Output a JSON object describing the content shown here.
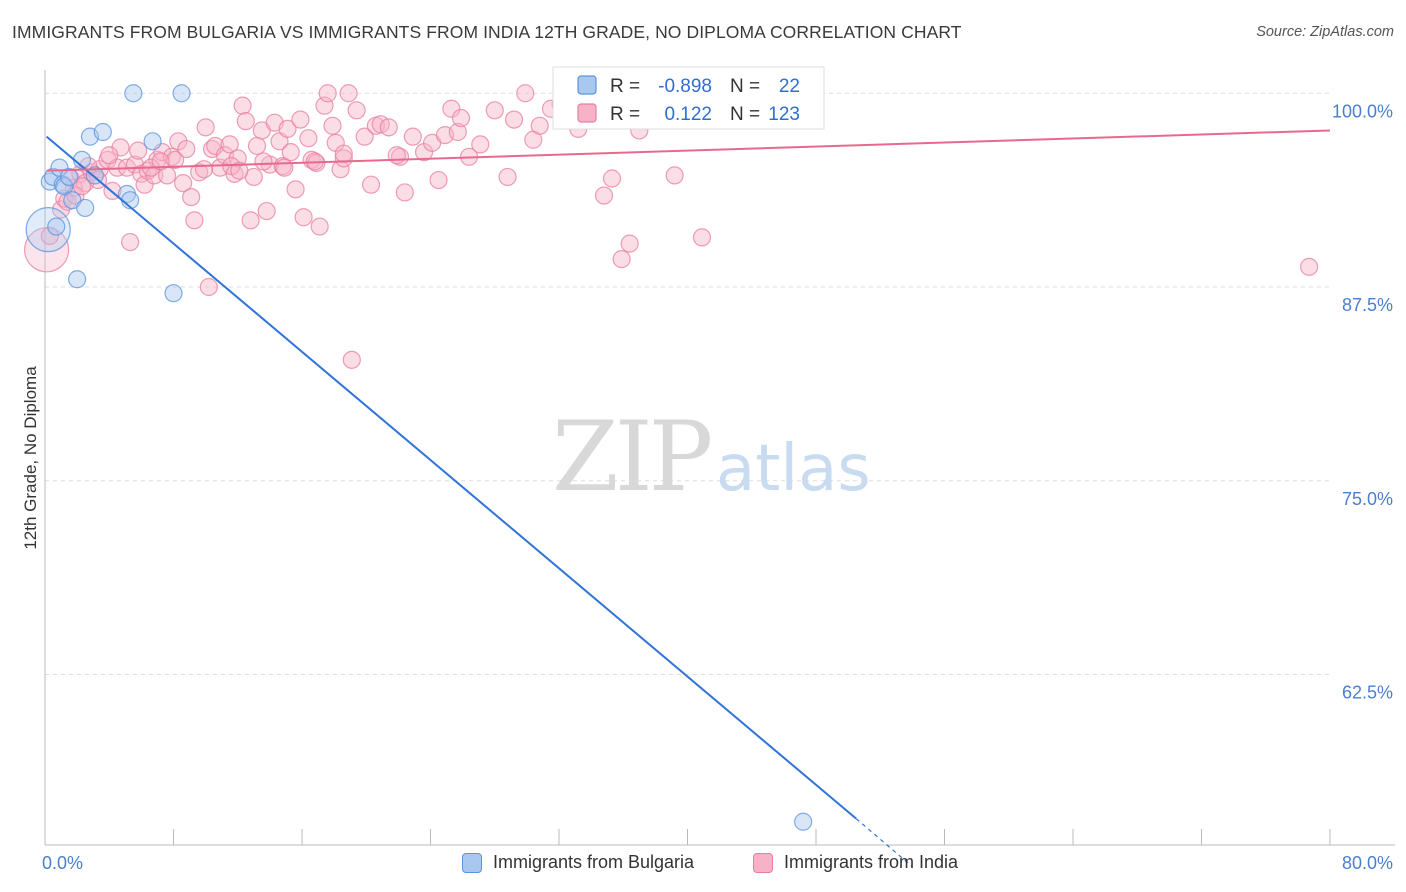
{
  "title": "IMMIGRANTS FROM BULGARIA VS IMMIGRANTS FROM INDIA 12TH GRADE, NO DIPLOMA CORRELATION CHART",
  "source": "Source: ZipAtlas.com",
  "watermark": {
    "zip": "ZIP",
    "atlas": "atlas"
  },
  "colors": {
    "bulgaria_fill": "#a9c8f0",
    "bulgaria_stroke": "#5a93de",
    "bulgaria_line": "#2f74d6",
    "india_fill": "#f6b3c8",
    "india_stroke": "#e97da0",
    "india_line": "#e8698f",
    "tick_label": "#4a7fd0",
    "grid": "#dddddd"
  },
  "legend": {
    "r_label": "R =",
    "n_label": "N =",
    "rows": [
      {
        "series": "Immigrants from Bulgaria",
        "r": "-0.898",
        "n": "22"
      },
      {
        "series": "Immigrants from India",
        "r": "0.122",
        "n": "123"
      }
    ]
  },
  "chart_data": {
    "type": "scatter",
    "title": "IMMIGRANTS FROM BULGARIA VS IMMIGRANTS FROM INDIA 12TH GRADE, NO DIPLOMA CORRELATION CHART",
    "xlabel": "",
    "ylabel": "12th Grade, No Diploma",
    "xlim": [
      0,
      80
    ],
    "ylim": [
      51.5,
      101.5
    ],
    "x_tick_labels": [
      "0.0%",
      "80.0%"
    ],
    "y_ticks": [
      100,
      87.5,
      75,
      62.5
    ],
    "y_tick_labels": [
      "100.0%",
      "87.5%",
      "75.0%",
      "62.5%"
    ],
    "grid": true,
    "series": [
      {
        "name": "Immigrants from Bulgaria",
        "trendline": {
          "x": [
            0.1,
            50.5
          ],
          "y": [
            97.2,
            53.2
          ],
          "dashed_to": [
            54.0,
            50.1
          ]
        },
        "points": [
          {
            "x": 0.2,
            "y": 91.2,
            "big": true
          },
          {
            "x": 0.3,
            "y": 94.3
          },
          {
            "x": 0.5,
            "y": 94.6
          },
          {
            "x": 0.9,
            "y": 95.2
          },
          {
            "x": 1.1,
            "y": 94.1
          },
          {
            "x": 1.2,
            "y": 94.0
          },
          {
            "x": 1.5,
            "y": 94.6
          },
          {
            "x": 1.7,
            "y": 93.1
          },
          {
            "x": 2.0,
            "y": 88.0
          },
          {
            "x": 2.3,
            "y": 95.7
          },
          {
            "x": 2.5,
            "y": 92.6
          },
          {
            "x": 2.8,
            "y": 97.2
          },
          {
            "x": 3.1,
            "y": 94.7
          },
          {
            "x": 3.6,
            "y": 97.5
          },
          {
            "x": 5.1,
            "y": 93.5
          },
          {
            "x": 5.3,
            "y": 93.1
          },
          {
            "x": 5.5,
            "y": 100.0
          },
          {
            "x": 6.7,
            "y": 96.9
          },
          {
            "x": 8.0,
            "y": 87.1
          },
          {
            "x": 8.5,
            "y": 100.0
          },
          {
            "x": 47.2,
            "y": 53.0
          },
          {
            "x": 0.7,
            "y": 91.4
          }
        ]
      },
      {
        "name": "Immigrants from India",
        "trendline": {
          "x": [
            0.1,
            80.0
          ],
          "y": [
            95.0,
            97.6
          ]
        },
        "points": [
          {
            "x": 0.1,
            "y": 89.9,
            "big": true
          },
          {
            "x": 0.3,
            "y": 90.8
          },
          {
            "x": 1.0,
            "y": 92.5
          },
          {
            "x": 1.2,
            "y": 93.2
          },
          {
            "x": 1.4,
            "y": 93.0
          },
          {
            "x": 1.6,
            "y": 94.5
          },
          {
            "x": 1.8,
            "y": 93.9
          },
          {
            "x": 2.2,
            "y": 94.8
          },
          {
            "x": 2.5,
            "y": 94.2
          },
          {
            "x": 2.9,
            "y": 94.9
          },
          {
            "x": 3.4,
            "y": 95.1
          },
          {
            "x": 3.9,
            "y": 95.7
          },
          {
            "x": 4.2,
            "y": 93.7
          },
          {
            "x": 4.5,
            "y": 95.2
          },
          {
            "x": 4.7,
            "y": 96.5
          },
          {
            "x": 5.1,
            "y": 95.2
          },
          {
            "x": 5.3,
            "y": 90.4
          },
          {
            "x": 5.6,
            "y": 95.4
          },
          {
            "x": 5.8,
            "y": 96.3
          },
          {
            "x": 6.0,
            "y": 94.8
          },
          {
            "x": 6.2,
            "y": 94.1
          },
          {
            "x": 6.4,
            "y": 95.0
          },
          {
            "x": 6.8,
            "y": 94.7
          },
          {
            "x": 7.0,
            "y": 95.7
          },
          {
            "x": 7.3,
            "y": 96.2
          },
          {
            "x": 7.6,
            "y": 94.7
          },
          {
            "x": 7.9,
            "y": 95.9
          },
          {
            "x": 8.3,
            "y": 96.9
          },
          {
            "x": 8.6,
            "y": 94.2
          },
          {
            "x": 8.8,
            "y": 96.4
          },
          {
            "x": 9.1,
            "y": 93.3
          },
          {
            "x": 9.3,
            "y": 91.8
          },
          {
            "x": 9.6,
            "y": 94.9
          },
          {
            "x": 10.0,
            "y": 97.8
          },
          {
            "x": 10.2,
            "y": 87.5
          },
          {
            "x": 10.4,
            "y": 96.4
          },
          {
            "x": 10.6,
            "y": 96.6
          },
          {
            "x": 10.9,
            "y": 95.2
          },
          {
            "x": 11.2,
            "y": 96.0
          },
          {
            "x": 11.5,
            "y": 96.7
          },
          {
            "x": 11.8,
            "y": 94.8
          },
          {
            "x": 12.0,
            "y": 95.8
          },
          {
            "x": 12.3,
            "y": 99.2
          },
          {
            "x": 12.5,
            "y": 98.2
          },
          {
            "x": 12.8,
            "y": 91.8
          },
          {
            "x": 13.0,
            "y": 94.6
          },
          {
            "x": 13.2,
            "y": 96.6
          },
          {
            "x": 13.5,
            "y": 97.6
          },
          {
            "x": 13.8,
            "y": 92.4
          },
          {
            "x": 14.0,
            "y": 95.4
          },
          {
            "x": 14.3,
            "y": 98.1
          },
          {
            "x": 14.6,
            "y": 96.9
          },
          {
            "x": 14.8,
            "y": 95.3
          },
          {
            "x": 15.1,
            "y": 97.7
          },
          {
            "x": 15.3,
            "y": 96.2
          },
          {
            "x": 15.6,
            "y": 93.8
          },
          {
            "x": 15.9,
            "y": 98.3
          },
          {
            "x": 16.1,
            "y": 92.0
          },
          {
            "x": 16.4,
            "y": 97.1
          },
          {
            "x": 16.6,
            "y": 95.7
          },
          {
            "x": 16.9,
            "y": 95.5
          },
          {
            "x": 17.1,
            "y": 91.4
          },
          {
            "x": 17.4,
            "y": 99.2
          },
          {
            "x": 17.6,
            "y": 100.0
          },
          {
            "x": 17.9,
            "y": 97.9
          },
          {
            "x": 18.1,
            "y": 96.8
          },
          {
            "x": 18.4,
            "y": 95.1
          },
          {
            "x": 18.6,
            "y": 95.8
          },
          {
            "x": 18.9,
            "y": 100.0
          },
          {
            "x": 19.1,
            "y": 82.8
          },
          {
            "x": 19.4,
            "y": 98.9
          },
          {
            "x": 19.9,
            "y": 97.2
          },
          {
            "x": 20.3,
            "y": 94.1
          },
          {
            "x": 20.6,
            "y": 97.9
          },
          {
            "x": 20.9,
            "y": 98.0
          },
          {
            "x": 21.4,
            "y": 97.8
          },
          {
            "x": 22.1,
            "y": 95.9
          },
          {
            "x": 22.4,
            "y": 93.6
          },
          {
            "x": 22.9,
            "y": 97.2
          },
          {
            "x": 23.6,
            "y": 96.2
          },
          {
            "x": 24.1,
            "y": 96.8
          },
          {
            "x": 24.5,
            "y": 94.4
          },
          {
            "x": 24.9,
            "y": 97.3
          },
          {
            "x": 25.3,
            "y": 99.0
          },
          {
            "x": 25.7,
            "y": 97.5
          },
          {
            "x": 25.9,
            "y": 98.4
          },
          {
            "x": 27.1,
            "y": 96.7
          },
          {
            "x": 28.0,
            "y": 98.9
          },
          {
            "x": 28.8,
            "y": 94.6
          },
          {
            "x": 29.2,
            "y": 98.3
          },
          {
            "x": 29.9,
            "y": 100.0
          },
          {
            "x": 30.4,
            "y": 97.0
          },
          {
            "x": 30.8,
            "y": 97.9
          },
          {
            "x": 31.5,
            "y": 99.0
          },
          {
            "x": 32.1,
            "y": 99.3
          },
          {
            "x": 33.2,
            "y": 97.7
          },
          {
            "x": 33.9,
            "y": 98.4
          },
          {
            "x": 34.4,
            "y": 99.2
          },
          {
            "x": 34.8,
            "y": 93.4
          },
          {
            "x": 35.3,
            "y": 94.5
          },
          {
            "x": 35.9,
            "y": 89.3
          },
          {
            "x": 36.4,
            "y": 90.3
          },
          {
            "x": 37.0,
            "y": 97.6
          },
          {
            "x": 39.2,
            "y": 94.7
          },
          {
            "x": 40.9,
            "y": 90.7
          },
          {
            "x": 78.7,
            "y": 88.8
          },
          {
            "x": 3.3,
            "y": 94.4
          },
          {
            "x": 2.7,
            "y": 95.3
          },
          {
            "x": 4.0,
            "y": 96.0
          },
          {
            "x": 6.6,
            "y": 95.2
          },
          {
            "x": 8.1,
            "y": 95.7
          },
          {
            "x": 9.9,
            "y": 95.1
          },
          {
            "x": 11.6,
            "y": 95.3
          },
          {
            "x": 13.6,
            "y": 95.6
          },
          {
            "x": 14.9,
            "y": 95.2
          },
          {
            "x": 16.8,
            "y": 95.6
          },
          {
            "x": 18.6,
            "y": 96.1
          },
          {
            "x": 21.9,
            "y": 96.0
          },
          {
            "x": 26.4,
            "y": 95.9
          },
          {
            "x": 1.9,
            "y": 93.4
          },
          {
            "x": 7.2,
            "y": 95.6
          },
          {
            "x": 12.1,
            "y": 95.0
          },
          {
            "x": 2.3,
            "y": 94.0
          }
        ]
      }
    ]
  }
}
